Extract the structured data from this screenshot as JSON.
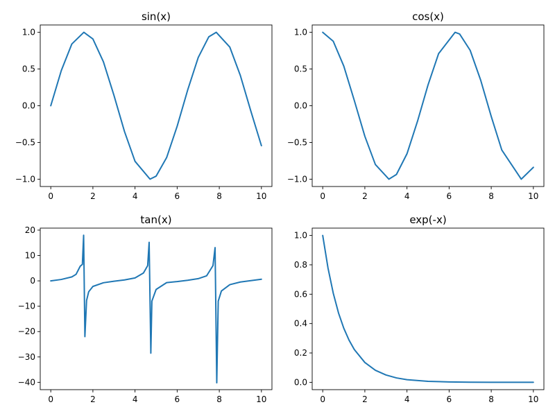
{
  "chart_data": [
    {
      "type": "line",
      "title": "sin(x)",
      "xlabel": "",
      "ylabel": "",
      "xlim": [
        -0.5,
        10.5
      ],
      "ylim": [
        -1.1,
        1.1
      ],
      "xticks": [
        0,
        2,
        4,
        6,
        8,
        10
      ],
      "xtick_labels": [
        "0",
        "2",
        "4",
        "6",
        "8",
        "10"
      ],
      "yticks": [
        -1.0,
        -0.5,
        0.0,
        0.5,
        1.0
      ],
      "ytick_labels": [
        "−1.0",
        "−0.5",
        "0.0",
        "0.5",
        "1.0"
      ],
      "series": [
        {
          "color": "#1f77b4",
          "x": [
            0,
            0.5,
            1,
            1.571,
            2,
            2.5,
            3,
            3.5,
            4,
            4.712,
            5,
            5.5,
            6,
            6.5,
            7,
            7.5,
            7.854,
            8.5,
            9,
            9.5,
            10
          ],
          "y": [
            0,
            0.479,
            0.841,
            1.0,
            0.909,
            0.598,
            0.141,
            -0.351,
            -0.757,
            -1.0,
            -0.959,
            -0.706,
            -0.279,
            0.215,
            0.657,
            0.938,
            1.0,
            0.798,
            0.412,
            -0.075,
            -0.544
          ]
        }
      ]
    },
    {
      "type": "line",
      "title": "cos(x)",
      "xlabel": "",
      "ylabel": "",
      "xlim": [
        -0.5,
        10.5
      ],
      "ylim": [
        -1.1,
        1.1
      ],
      "xticks": [
        0,
        2,
        4,
        6,
        8,
        10
      ],
      "xtick_labels": [
        "0",
        "2",
        "4",
        "6",
        "8",
        "10"
      ],
      "yticks": [
        -1.0,
        -0.5,
        0.0,
        0.5,
        1.0
      ],
      "ytick_labels": [
        "−1.0",
        "−0.5",
        "0.0",
        "0.5",
        "1.0"
      ],
      "series": [
        {
          "color": "#1f77b4",
          "x": [
            0,
            0.5,
            1,
            1.5,
            2,
            2.5,
            3.142,
            3.5,
            4,
            4.5,
            5,
            5.5,
            6.283,
            6.5,
            7,
            7.5,
            8,
            8.5,
            9.425,
            10
          ],
          "y": [
            1.0,
            0.878,
            0.54,
            0.071,
            -0.416,
            -0.801,
            -1.0,
            -0.936,
            -0.654,
            -0.211,
            0.284,
            0.709,
            1.0,
            0.977,
            0.754,
            0.347,
            -0.146,
            -0.602,
            -1.0,
            -0.839
          ]
        }
      ]
    },
    {
      "type": "line",
      "title": "tan(x)",
      "xlabel": "",
      "ylabel": "",
      "xlim": [
        -0.5,
        10.5
      ],
      "ylim": [
        -42.9,
        20.8
      ],
      "xticks": [
        0,
        2,
        4,
        6,
        8,
        10
      ],
      "xtick_labels": [
        "0",
        "2",
        "4",
        "6",
        "8",
        "10"
      ],
      "yticks": [
        -40,
        -30,
        -20,
        -10,
        0,
        10,
        20
      ],
      "ytick_labels": [
        "−40",
        "−30",
        "−20",
        "−10",
        "0",
        "10",
        "20"
      ],
      "series": [
        {
          "color": "#1f77b4",
          "x": [
            0,
            0.5,
            1,
            1.2,
            1.4,
            1.5,
            1.56,
            1.62,
            1.7,
            1.8,
            2,
            2.5,
            3,
            3.5,
            4,
            4.4,
            4.6,
            4.67,
            4.75,
            4.8,
            5,
            5.5,
            6,
            6.5,
            7,
            7.4,
            7.7,
            7.8,
            7.88,
            7.95,
            8.1,
            8.5,
            9,
            9.5,
            10
          ],
          "y": [
            0,
            0.55,
            1.56,
            2.57,
            5.8,
            6.5,
            18.0,
            -22.0,
            -7.7,
            -4.3,
            -2.2,
            -0.75,
            -0.14,
            0.37,
            1.16,
            3.1,
            6.0,
            15.2,
            -28.5,
            -8.0,
            -3.4,
            -0.7,
            -0.29,
            0.22,
            0.87,
            2.0,
            6.0,
            13.1,
            -40.2,
            -8.0,
            -4.0,
            -1.5,
            -0.45,
            0.08,
            0.65
          ]
        }
      ]
    },
    {
      "type": "line",
      "title": "exp(-x)",
      "xlabel": "",
      "ylabel": "",
      "xlim": [
        -0.5,
        10.5
      ],
      "ylim": [
        -0.05,
        1.05
      ],
      "xticks": [
        0,
        2,
        4,
        6,
        8,
        10
      ],
      "xtick_labels": [
        "0",
        "2",
        "4",
        "6",
        "8",
        "10"
      ],
      "yticks": [
        0.0,
        0.2,
        0.4,
        0.6,
        0.8,
        1.0
      ],
      "ytick_labels": [
        "0.0",
        "0.2",
        "0.4",
        "0.6",
        "0.8",
        "1.0"
      ],
      "series": [
        {
          "color": "#1f77b4",
          "x": [
            0,
            0.25,
            0.5,
            0.75,
            1,
            1.25,
            1.5,
            2,
            2.5,
            3,
            3.5,
            4,
            5,
            6,
            7,
            8,
            9,
            10
          ],
          "y": [
            1.0,
            0.779,
            0.607,
            0.472,
            0.368,
            0.287,
            0.223,
            0.135,
            0.082,
            0.05,
            0.03,
            0.018,
            0.0067,
            0.0025,
            0.0009,
            0.0003,
            0.0001,
            5e-05
          ]
        }
      ]
    }
  ]
}
